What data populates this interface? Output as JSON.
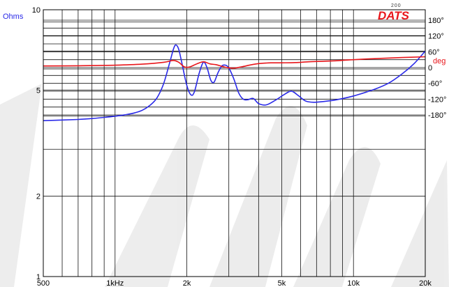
{
  "logo": {
    "text": "DATS",
    "sup": "200",
    "color": "#e8161b"
  },
  "chart_data": {
    "type": "line",
    "title": "",
    "xlabel": "",
    "ylabel": "Ohms",
    "y2label": "deg",
    "xscale": "log",
    "yscale": "log",
    "xlim": [
      500,
      20000
    ],
    "ylim": [
      1,
      10
    ],
    "y2lim": [
      -180,
      180
    ],
    "grid": true,
    "x_ticks": [
      {
        "value": 500,
        "label": "500"
      },
      {
        "value": 1000,
        "label": "1kHz"
      },
      {
        "value": 2000,
        "label": "2k"
      },
      {
        "value": 5000,
        "label": "5k"
      },
      {
        "value": 10000,
        "label": "10k"
      },
      {
        "value": 20000,
        "label": "20k"
      }
    ],
    "x_minor_gridlines": [
      600,
      700,
      800,
      900,
      3000,
      4000,
      6000,
      7000,
      8000,
      9000
    ],
    "y_ticks": [
      {
        "value": 1,
        "label": "1"
      },
      {
        "value": 2,
        "label": "2"
      },
      {
        "value": 5,
        "label": "5"
      },
      {
        "value": 10,
        "label": "10"
      }
    ],
    "y_minor_gridlines": [
      3,
      4,
      6,
      7,
      8,
      9
    ],
    "y2_ticks": [
      {
        "value": 180,
        "label": "180°"
      },
      {
        "value": 120,
        "label": "120°"
      },
      {
        "value": 60,
        "label": "60°"
      },
      {
        "value": 0,
        "label": "0"
      },
      {
        "value": -60,
        "label": "-60°"
      },
      {
        "value": -120,
        "label": "-120°"
      },
      {
        "value": -180,
        "label": "-180°"
      }
    ],
    "y2_minor_gridlines": [
      150,
      90,
      30,
      -30,
      -90,
      -150
    ],
    "series": [
      {
        "axis": "left",
        "color": "#2a2ae8",
        "points": [
          [
            500,
            3.84
          ],
          [
            600,
            3.86
          ],
          [
            700,
            3.88
          ],
          [
            800,
            3.91
          ],
          [
            900,
            3.95
          ],
          [
            1000,
            3.99
          ],
          [
            1100,
            4.04
          ],
          [
            1200,
            4.1
          ],
          [
            1300,
            4.2
          ],
          [
            1400,
            4.38
          ],
          [
            1500,
            4.68
          ],
          [
            1600,
            5.3
          ],
          [
            1700,
            6.4
          ],
          [
            1760,
            7.15
          ],
          [
            1800,
            7.38
          ],
          [
            1850,
            7.1
          ],
          [
            1900,
            6.4
          ],
          [
            2000,
            5.2
          ],
          [
            2080,
            4.8
          ],
          [
            2150,
            4.92
          ],
          [
            2250,
            5.75
          ],
          [
            2330,
            6.3
          ],
          [
            2380,
            6.32
          ],
          [
            2440,
            6.0
          ],
          [
            2520,
            5.45
          ],
          [
            2600,
            5.35
          ],
          [
            2700,
            5.8
          ],
          [
            2800,
            6.15
          ],
          [
            2900,
            6.2
          ],
          [
            3000,
            6.05
          ],
          [
            3150,
            5.5
          ],
          [
            3300,
            4.88
          ],
          [
            3450,
            4.62
          ],
          [
            3600,
            4.6
          ],
          [
            3800,
            4.65
          ],
          [
            4000,
            4.45
          ],
          [
            4300,
            4.4
          ],
          [
            4700,
            4.58
          ],
          [
            5100,
            4.8
          ],
          [
            5400,
            4.94
          ],
          [
            5600,
            4.92
          ],
          [
            5900,
            4.75
          ],
          [
            6300,
            4.55
          ],
          [
            6800,
            4.5
          ],
          [
            7500,
            4.53
          ],
          [
            8500,
            4.6
          ],
          [
            10000,
            4.75
          ],
          [
            12000,
            5.0
          ],
          [
            14000,
            5.3
          ],
          [
            16000,
            5.75
          ],
          [
            18000,
            6.3
          ],
          [
            20000,
            7.0
          ]
        ]
      },
      {
        "axis": "right",
        "color": "#e8161b",
        "points": [
          [
            500,
            6
          ],
          [
            700,
            7
          ],
          [
            1000,
            9
          ],
          [
            1300,
            13
          ],
          [
            1600,
            20
          ],
          [
            1750,
            27
          ],
          [
            1850,
            20
          ],
          [
            1950,
            3
          ],
          [
            2050,
            2
          ],
          [
            2200,
            14
          ],
          [
            2350,
            22
          ],
          [
            2500,
            14
          ],
          [
            2650,
            11
          ],
          [
            2800,
            5
          ],
          [
            2950,
            0
          ],
          [
            3150,
            -2
          ],
          [
            3400,
            3
          ],
          [
            3700,
            10
          ],
          [
            4000,
            15
          ],
          [
            4500,
            18
          ],
          [
            5000,
            18
          ],
          [
            5700,
            19
          ],
          [
            6500,
            22
          ],
          [
            8000,
            25
          ],
          [
            10000,
            30
          ],
          [
            13000,
            35
          ],
          [
            16000,
            38
          ],
          [
            20000,
            41
          ]
        ]
      }
    ]
  }
}
